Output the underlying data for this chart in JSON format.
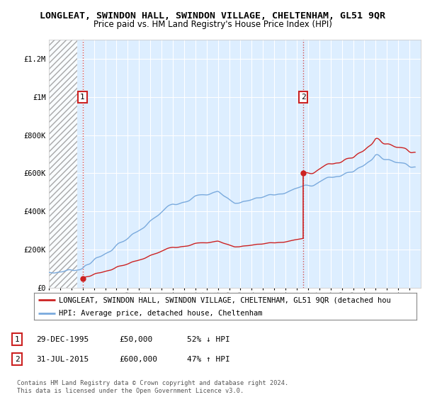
{
  "title": "LONGLEAT, SWINDON HALL, SWINDON VILLAGE, CHELTENHAM, GL51 9QR",
  "subtitle": "Price paid vs. HM Land Registry's House Price Index (HPI)",
  "ylim": [
    0,
    1300000
  ],
  "yticks": [
    0,
    200000,
    400000,
    600000,
    800000,
    1000000,
    1200000
  ],
  "ytick_labels": [
    "£0",
    "£200K",
    "£400K",
    "£600K",
    "£800K",
    "£1M",
    "£1.2M"
  ],
  "sale1_date": 1995.99,
  "sale1_price": 50000,
  "sale1_label": "1",
  "sale2_date": 2015.58,
  "sale2_price": 600000,
  "sale2_label": "2",
  "hpi_color": "#7aaadd",
  "price_color": "#cc2222",
  "sale_dot_color": "#cc2222",
  "grid_color": "#cccccc",
  "plot_bg_color": "#ddeeff",
  "background_color": "#ffffff",
  "legend_line1": "LONGLEAT, SWINDON HALL, SWINDON VILLAGE, CHELTENHAM, GL51 9QR (detached hou",
  "legend_line2": "HPI: Average price, detached house, Cheltenham",
  "footer": "Contains HM Land Registry data © Crown copyright and database right 2024.\nThis data is licensed under the Open Government Licence v3.0.",
  "title_fontsize": 9.5,
  "subtitle_fontsize": 8.5,
  "axis_fontsize": 7.5,
  "xstart": 1993,
  "xend": 2026
}
